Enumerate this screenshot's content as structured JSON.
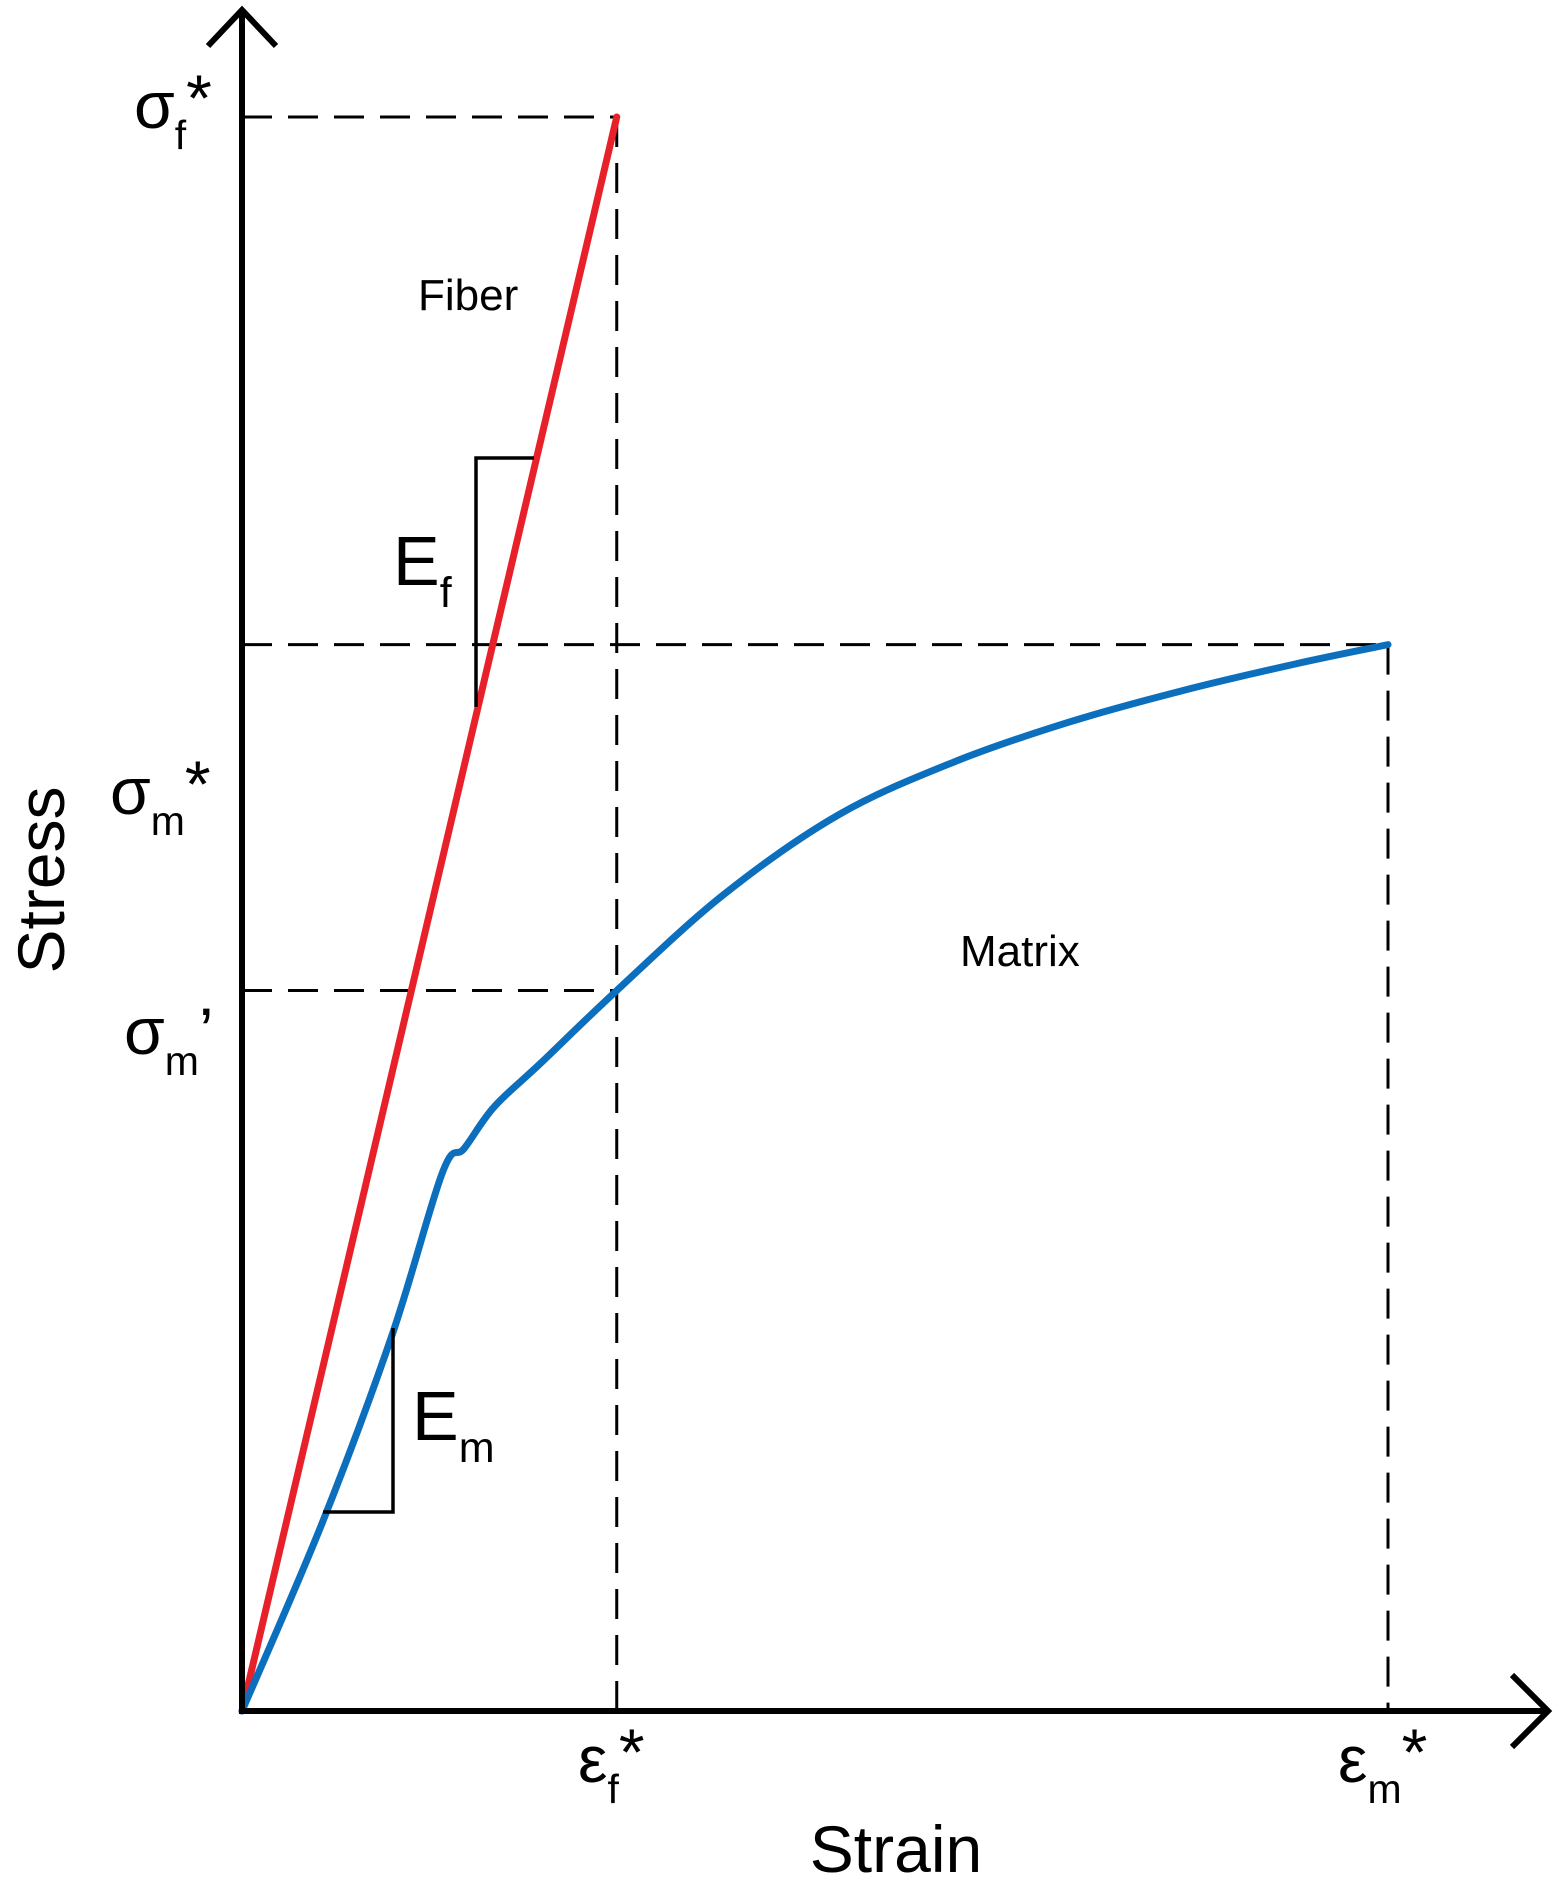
{
  "chart_data": {
    "type": "line",
    "xlabel": "Strain",
    "ylabel": "Stress",
    "axis_marks": {
      "x": [
        {
          "main": "ε",
          "sub": "f",
          "sup": "*"
        },
        {
          "main": "ε",
          "sub": "m",
          "sup": "*"
        }
      ],
      "y": [
        {
          "main": "σ",
          "sub": "f",
          "sup": "*"
        },
        {
          "main": "σ",
          "sub": "m",
          "sup": "*"
        },
        {
          "main": "σ",
          "sub": "m",
          "sup": "’"
        }
      ]
    },
    "series": [
      {
        "name": "Fiber",
        "color": "#e8202a",
        "x": [
          0,
          0.327
        ],
        "y": [
          0,
          1.0
        ]
      },
      {
        "name": "Matrix",
        "color": "#0b6fbd",
        "x": [
          0,
          0.07,
          0.131,
          0.175,
          0.194,
          0.22,
          0.26,
          0.327,
          0.42,
          0.52,
          0.62,
          0.72,
          0.82,
          0.92,
          1.0
        ],
        "y": [
          0,
          0.118,
          0.236,
          0.338,
          0.353,
          0.379,
          0.406,
          0.452,
          0.512,
          0.562,
          0.595,
          0.62,
          0.64,
          0.657,
          0.669
        ]
      }
    ],
    "slope_labels": [
      {
        "main": "E",
        "sub": "f"
      },
      {
        "main": "E",
        "sub": "m"
      }
    ],
    "curve_labels": [
      "Fiber",
      "Matrix"
    ],
    "grid": false,
    "axis_color": "#000000"
  }
}
